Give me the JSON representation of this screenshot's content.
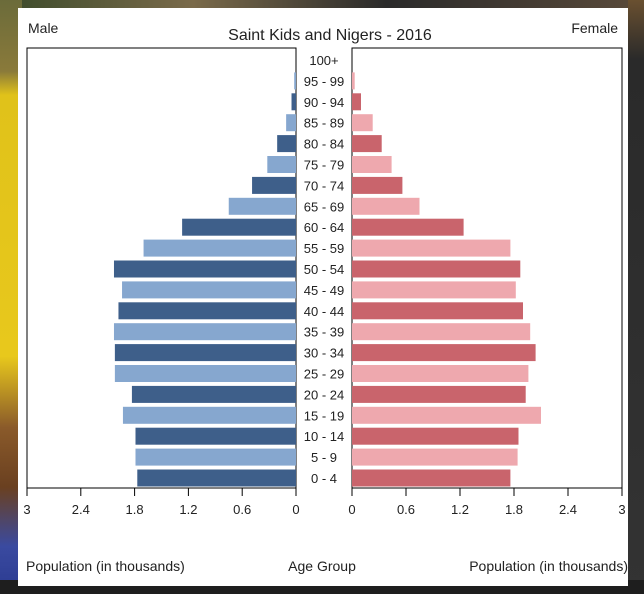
{
  "chart_data": {
    "type": "bar",
    "title": "Saint Kids and Nigers - 2016",
    "left_label": "Male",
    "right_label": "Female",
    "center_axis_label": "Age Group",
    "left_axis_label": "Population (in thousands)",
    "right_axis_label": "Population (in thousands)",
    "xlim": [
      0,
      3
    ],
    "left_ticks": [
      "3",
      "2.4",
      "1.8",
      "1.2",
      "0.6",
      "0"
    ],
    "right_ticks": [
      "0",
      "0.6",
      "1.2",
      "1.8",
      "2.4",
      "3"
    ],
    "categories": [
      "100+",
      "95 - 99",
      "90 - 94",
      "85 - 89",
      "80 - 84",
      "75 - 79",
      "70 - 74",
      "65 - 69",
      "60 - 64",
      "55 - 59",
      "50 - 54",
      "45 - 49",
      "40 - 44",
      "35 - 39",
      "30 - 34",
      "25 - 29",
      "20 - 24",
      "15 - 19",
      "10 - 14",
      "5 - 9",
      "0 - 4"
    ],
    "series": [
      {
        "name": "Male",
        "colors": [
          "#3e5f8a",
          "#86a7cf"
        ],
        "values": [
          0.0,
          0.02,
          0.05,
          0.11,
          0.21,
          0.32,
          0.49,
          0.75,
          1.27,
          1.7,
          2.03,
          1.94,
          1.98,
          2.03,
          2.02,
          2.02,
          1.83,
          1.93,
          1.79,
          1.79,
          1.77
        ]
      },
      {
        "name": "Female",
        "colors": [
          "#c9646c",
          "#eea8ae"
        ],
        "values": [
          0.0,
          0.03,
          0.1,
          0.23,
          0.33,
          0.44,
          0.56,
          0.75,
          1.24,
          1.76,
          1.87,
          1.82,
          1.9,
          1.98,
          2.04,
          1.96,
          1.93,
          2.1,
          1.85,
          1.84,
          1.76
        ]
      }
    ]
  }
}
